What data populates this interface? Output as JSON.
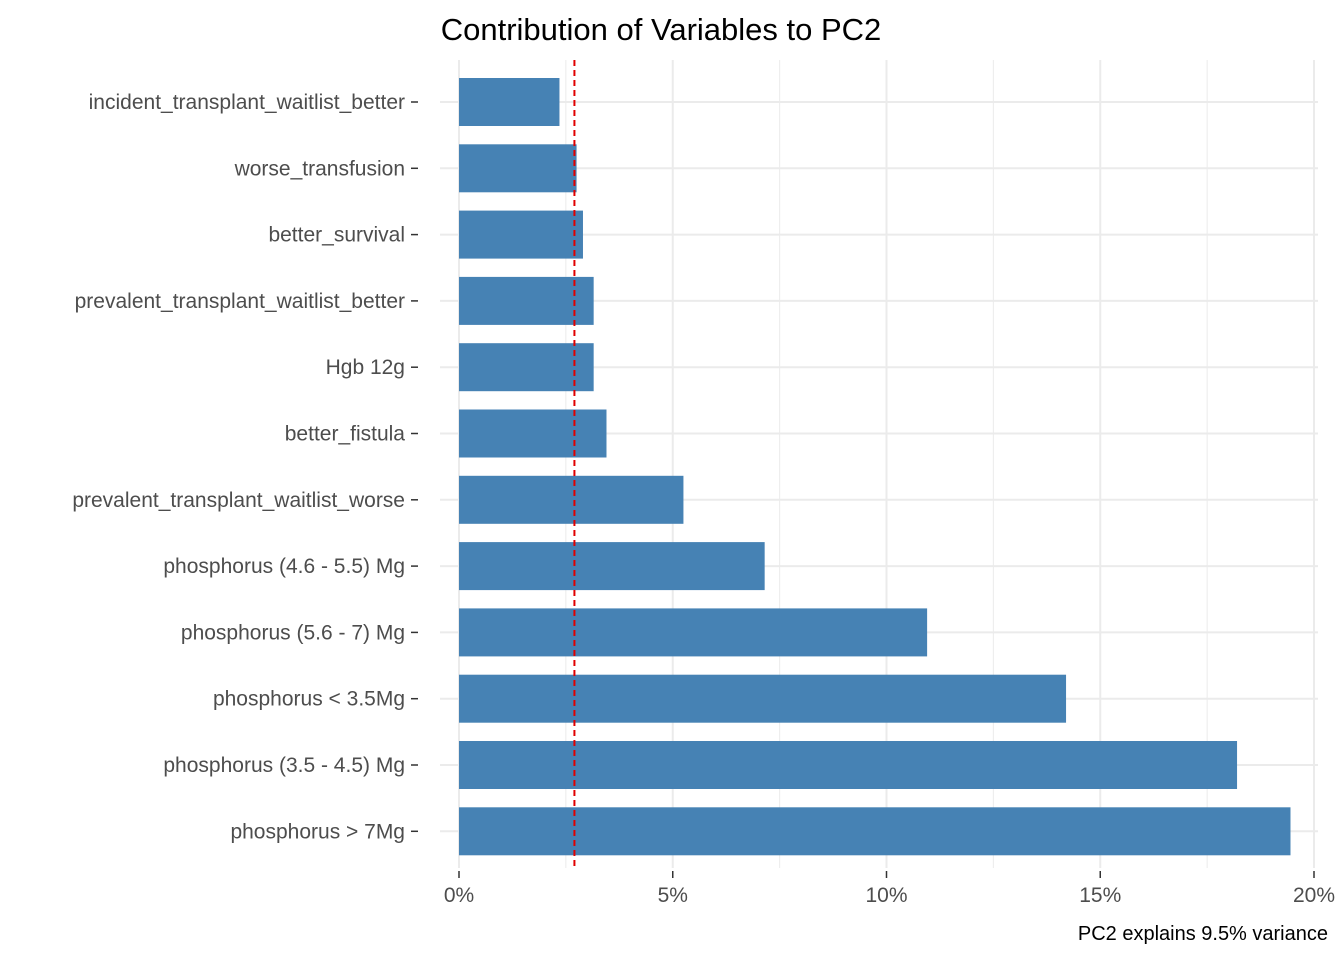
{
  "chart_data": {
    "type": "bar",
    "orientation": "horizontal",
    "title": "Contribution of Variables to PC2",
    "caption": "PC2 explains 9.5% variance",
    "xlabel": "",
    "ylabel": "",
    "categories": [
      "incident_transplant_waitlist_better",
      "worse_transfusion",
      "better_survival",
      "prevalent_transplant_waitlist_better",
      "Hgb 12g",
      "better_fistula",
      "prevalent_transplant_waitlist_worse",
      "phosphorus (4.6 - 5.5) Mg",
      "phosphorus (5.6 - 7) Mg",
      "phosphorus < 3.5Mg",
      "phosphorus (3.5 - 4.5) Mg",
      "phosphorus > 7Mg"
    ],
    "values": [
      2.35,
      2.75,
      2.9,
      3.15,
      3.15,
      3.45,
      5.25,
      7.15,
      10.95,
      14.2,
      18.2,
      19.45
    ],
    "unit": "%",
    "reference_line": {
      "value": 2.7,
      "color": "#e00000",
      "style": "dashed"
    },
    "xlim": [
      0,
      20
    ],
    "xticks": [
      0,
      5,
      10,
      15,
      20
    ],
    "xtick_labels": [
      "0%",
      "5%",
      "10%",
      "15%",
      "20%"
    ],
    "grid": true,
    "legend": "none",
    "colors": {
      "bar": "#4682b4",
      "grid": "#ebebeb",
      "reference_line": "#e00000"
    }
  }
}
